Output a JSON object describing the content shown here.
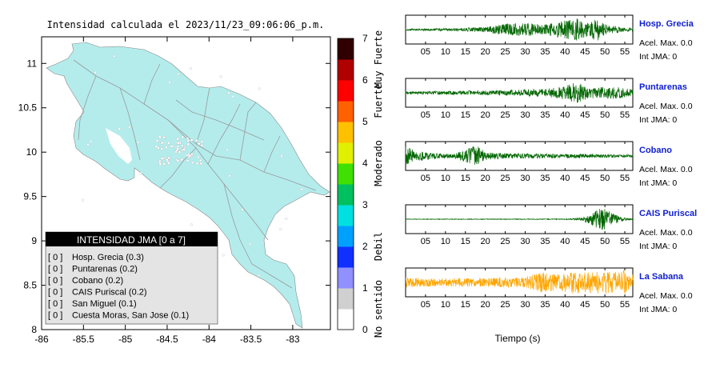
{
  "map": {
    "title": "Intensidad calculada el 2023/11/23_09:06:06_p.m.",
    "x_ticks": [
      -86,
      -85.5,
      -85,
      -84.5,
      -84,
      -83.5,
      -83
    ],
    "x_tick_labels": [
      "-86",
      "-85.5",
      "-85",
      "-84.5",
      "-84",
      "-83.5",
      "-83"
    ],
    "y_ticks": [
      8,
      8.5,
      9,
      9.5,
      10,
      10.5,
      11
    ],
    "y_tick_labels": [
      "8",
      "8.5",
      "9",
      "9.5",
      "10",
      "10.5",
      "11"
    ],
    "xlim": [
      -86,
      -82.55
    ],
    "ylim": [
      8,
      11.3
    ],
    "land_color": "#b4ecec"
  },
  "legend": {
    "title": "INTENSIDAD JMA [0 a 7]",
    "entries": [
      {
        "bracket": "[ 0 ]",
        "label": "Hosp. Grecia (0.3)"
      },
      {
        "bracket": "[ 0 ]",
        "label": "Puntarenas (0.2)"
      },
      {
        "bracket": "[ 0 ]",
        "label": "Cobano (0.2)"
      },
      {
        "bracket": "[ 0 ]",
        "label": "CAIS Puriscal (0.2)"
      },
      {
        "bracket": "[ 0 ]",
        "label": "San Miguel (0.1)"
      },
      {
        "bracket": "[ 0 ]",
        "label": "Cuesta Moras, San Jose (0.1)"
      }
    ]
  },
  "colorbar": {
    "tick_labels": [
      "0",
      "1",
      "2",
      "3",
      "4",
      "5",
      "6",
      "7"
    ],
    "category_labels": [
      "No sentido",
      "Debil",
      "Moderado",
      "Fuerte",
      "Muy Fuerte"
    ],
    "colors": [
      "#ffffff",
      "#d0d0d0",
      "#9090ff",
      "#1030ff",
      "#00a0ff",
      "#00e0e0",
      "#00c060",
      "#40e000",
      "#e0f000",
      "#ffc000",
      "#ff6000",
      "#ff0000",
      "#b00000",
      "#300000"
    ]
  },
  "chart_data": {
    "type": "line",
    "x_axis_label": "Tiempo (s)",
    "x_ticks": [
      5,
      10,
      15,
      20,
      25,
      30,
      35,
      40,
      45,
      50,
      55
    ],
    "x_tick_labels": [
      "05",
      "10",
      "15",
      "20",
      "25",
      "30",
      "35",
      "40",
      "45",
      "50",
      "55"
    ],
    "xlim": [
      0,
      57
    ],
    "series": [
      {
        "name": "Hosp. Grecia",
        "accel_label": "Acel. Max. 0.0",
        "intensity_label": "Int JMA: 0",
        "color": "#006600",
        "envelope": [
          [
            0,
            0.06
          ],
          [
            12,
            0.1
          ],
          [
            20,
            0.2
          ],
          [
            25,
            0.45
          ],
          [
            30,
            0.5
          ],
          [
            35,
            0.4
          ],
          [
            40,
            0.7
          ],
          [
            43,
            0.85
          ],
          [
            46,
            0.5
          ],
          [
            48,
            0.95
          ],
          [
            50,
            0.4
          ],
          [
            55,
            0.15
          ],
          [
            57,
            0.1
          ]
        ]
      },
      {
        "name": "Puntarenas",
        "accel_label": "Acel. Max. 0.0",
        "intensity_label": "Int JMA: 0",
        "color": "#006600",
        "envelope": [
          [
            0,
            0.1
          ],
          [
            15,
            0.15
          ],
          [
            25,
            0.2
          ],
          [
            35,
            0.3
          ],
          [
            40,
            0.5
          ],
          [
            43,
            0.85
          ],
          [
            46,
            0.4
          ],
          [
            52,
            0.5
          ],
          [
            55,
            0.35
          ],
          [
            57,
            0.3
          ]
        ]
      },
      {
        "name": "Cobano",
        "accel_label": "Acel. Max. 0.0",
        "intensity_label": "Int JMA: 0",
        "color": "#006600",
        "envelope": [
          [
            0,
            0.7
          ],
          [
            3,
            0.4
          ],
          [
            8,
            0.2
          ],
          [
            12,
            0.15
          ],
          [
            16,
            0.6
          ],
          [
            18,
            0.9
          ],
          [
            20,
            0.3
          ],
          [
            25,
            0.2
          ],
          [
            45,
            0.15
          ],
          [
            57,
            0.1
          ]
        ]
      },
      {
        "name": "CAIS Puriscal",
        "accel_label": "Acel. Max. 0.0",
        "intensity_label": "Int JMA: 0",
        "color": "#006600",
        "envelope": [
          [
            0,
            0.02
          ],
          [
            40,
            0.03
          ],
          [
            44,
            0.1
          ],
          [
            47,
            0.5
          ],
          [
            49,
            0.95
          ],
          [
            51,
            0.7
          ],
          [
            53,
            0.3
          ],
          [
            55,
            0.1
          ],
          [
            57,
            0.05
          ]
        ]
      },
      {
        "name": "La Sabana",
        "accel_label": "Acel. Max. 0.0",
        "intensity_label": "Int JMA: 0",
        "color": "#ffa500",
        "envelope": [
          [
            0,
            0.35
          ],
          [
            10,
            0.3
          ],
          [
            20,
            0.35
          ],
          [
            30,
            0.4
          ],
          [
            34,
            0.8
          ],
          [
            38,
            0.6
          ],
          [
            42,
            0.85
          ],
          [
            48,
            0.9
          ],
          [
            52,
            0.8
          ],
          [
            55,
            0.95
          ],
          [
            57,
            0.6
          ]
        ]
      }
    ]
  }
}
